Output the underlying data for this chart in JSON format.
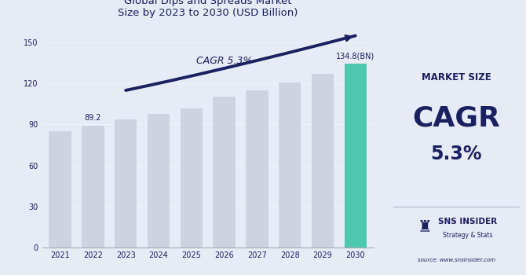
{
  "years": [
    2021,
    2022,
    2023,
    2024,
    2025,
    2026,
    2027,
    2028,
    2029,
    2030
  ],
  "values": [
    85.0,
    89.2,
    93.5,
    97.5,
    101.5,
    110.5,
    115.0,
    121.0,
    127.0,
    134.8
  ],
  "bar_colors": [
    "#cdd4e0",
    "#cdd4e0",
    "#cdd4e0",
    "#cdd4e0",
    "#cdd4e0",
    "#cdd4e0",
    "#cdd4e0",
    "#cdd4e0",
    "#cdd4e0",
    "#4ec9b0"
  ],
  "highlight_label": "134.8(BN)",
  "label_2022": "89.2",
  "title_line1": "Global Dips and Spreads Market",
  "title_line2": "Size by 2023 to 2030 (USD Billion)",
  "cagr_text": "CAGR 5.3%",
  "ylim": [
    0,
    165
  ],
  "yticks": [
    0,
    30,
    60,
    90,
    120,
    150
  ],
  "bg_color_chart": "#e6ebf5",
  "bg_color_side": "#bfc5d0",
  "title_color": "#1a2060",
  "bar_text_color": "#1a2060",
  "axis_color": "#1a2060",
  "curve_color": "#1a2060",
  "side_market_size": "MARKET SIZE",
  "side_cagr": "CAGR",
  "side_value": "5.3%",
  "side_brand": "SNS INSIDER",
  "side_subtitle": "Strategy & Stats",
  "source_text": "source: www.snsinsider.com"
}
